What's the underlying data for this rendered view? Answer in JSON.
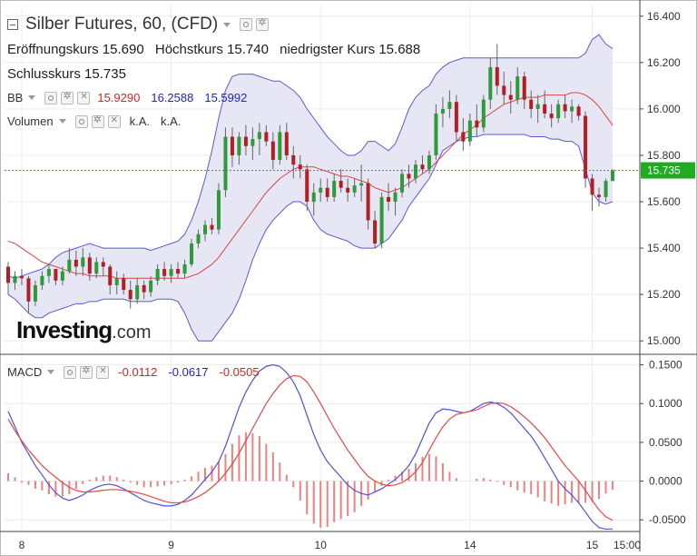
{
  "header": {
    "title": "Silber Futures, 60, (CFD)",
    "ohlc": [
      {
        "label": "Eröffnungskurs",
        "value": "15.690"
      },
      {
        "label": "Höchstkurs",
        "value": "15.740"
      },
      {
        "label": "niedrigster Kurs",
        "value": "15.688"
      },
      {
        "label": "Schlusskurs",
        "value": "15.735"
      }
    ]
  },
  "indicators": {
    "bb": {
      "label": "BB",
      "values": [
        "15.9290",
        "16.2588",
        "15.5992"
      ],
      "colors": [
        "#dd2222",
        "#2222cc",
        "#2222cc"
      ]
    },
    "volume": {
      "label": "Volumen",
      "values": [
        "k.A.",
        "k.A."
      ]
    },
    "macd": {
      "label": "MACD",
      "values": [
        "-0.0112",
        "-0.0617",
        "-0.0505"
      ],
      "colors": [
        "#dd2222",
        "#2222cc",
        "#dd2222"
      ]
    }
  },
  "logo": {
    "main": "Investing",
    "suffix": ".com"
  },
  "price_axis": {
    "ticks": [
      "16.400",
      "16.200",
      "16.000",
      "15.800",
      "15.600",
      "15.400",
      "15.200",
      "15.000"
    ],
    "current": "15.735"
  },
  "macd_axis": {
    "ticks": [
      "0.1500",
      "0.1000",
      "0.0500",
      "0.0000",
      "-0.0500"
    ]
  },
  "time_axis": {
    "ticks": [
      "8",
      "9",
      "10",
      "14",
      "15",
      "15:00"
    ]
  },
  "colors": {
    "up": "#2e9a3a",
    "down": "#b51d25",
    "band_fill": "#e3e3f3",
    "band_line": "#5a5ae0",
    "mid_line": "#dd4444",
    "macd_line": "#5050e0",
    "signal_line": "#ee4444",
    "hist": "#f08080",
    "current": "#22aa22"
  },
  "chart_data": [
    {
      "type": "candlestick",
      "title": "Silber Futures, 60, (CFD)",
      "ylim": [
        14.95,
        16.45
      ],
      "candles": [
        [
          15.32,
          15.34,
          15.2,
          15.25
        ],
        [
          15.25,
          15.3,
          15.22,
          15.28
        ],
        [
          15.28,
          15.31,
          15.24,
          15.27
        ],
        [
          15.27,
          15.28,
          15.12,
          15.17
        ],
        [
          15.17,
          15.26,
          15.15,
          15.24
        ],
        [
          15.24,
          15.3,
          15.22,
          15.28
        ],
        [
          15.28,
          15.33,
          15.25,
          15.31
        ],
        [
          15.31,
          15.31,
          15.24,
          15.26
        ],
        [
          15.26,
          15.32,
          15.24,
          15.3
        ],
        [
          15.3,
          15.4,
          15.29,
          15.35
        ],
        [
          15.35,
          15.39,
          15.28,
          15.32
        ],
        [
          15.32,
          15.4,
          15.28,
          15.36
        ],
        [
          15.36,
          15.38,
          15.26,
          15.29
        ],
        [
          15.29,
          15.36,
          15.27,
          15.34
        ],
        [
          15.34,
          15.36,
          15.28,
          15.32
        ],
        [
          15.32,
          15.33,
          15.2,
          15.24
        ],
        [
          15.24,
          15.3,
          15.2,
          15.27
        ],
        [
          15.27,
          15.29,
          15.2,
          15.22
        ],
        [
          15.22,
          15.26,
          15.14,
          15.18
        ],
        [
          15.18,
          15.27,
          15.16,
          15.24
        ],
        [
          15.24,
          15.26,
          15.18,
          15.21
        ],
        [
          15.21,
          15.28,
          15.19,
          15.26
        ],
        [
          15.26,
          15.33,
          15.24,
          15.31
        ],
        [
          15.31,
          15.34,
          15.26,
          15.28
        ],
        [
          15.28,
          15.33,
          15.25,
          15.31
        ],
        [
          15.31,
          15.34,
          15.27,
          15.29
        ],
        [
          15.29,
          15.35,
          15.27,
          15.33
        ],
        [
          15.33,
          15.44,
          15.32,
          15.42
        ],
        [
          15.42,
          15.48,
          15.4,
          15.46
        ],
        [
          15.46,
          15.52,
          15.43,
          15.5
        ],
        [
          15.5,
          15.53,
          15.46,
          15.48
        ],
        [
          15.48,
          15.68,
          15.46,
          15.65
        ],
        [
          15.65,
          15.92,
          15.62,
          15.88
        ],
        [
          15.88,
          15.92,
          15.75,
          15.8
        ],
        [
          15.8,
          15.9,
          15.76,
          15.88
        ],
        [
          15.88,
          15.93,
          15.8,
          15.84
        ],
        [
          15.84,
          15.92,
          15.78,
          15.87
        ],
        [
          15.87,
          15.94,
          15.8,
          15.9
        ],
        [
          15.9,
          15.93,
          15.84,
          15.86
        ],
        [
          15.86,
          15.9,
          15.74,
          15.78
        ],
        [
          15.78,
          15.93,
          15.76,
          15.9
        ],
        [
          15.9,
          15.94,
          15.78,
          15.8
        ],
        [
          15.8,
          15.84,
          15.7,
          15.76
        ],
        [
          15.76,
          15.8,
          15.7,
          15.74
        ],
        [
          15.74,
          15.76,
          15.56,
          15.6
        ],
        [
          15.6,
          15.68,
          15.54,
          15.64
        ],
        [
          15.64,
          15.7,
          15.6,
          15.66
        ],
        [
          15.66,
          15.7,
          15.6,
          15.62
        ],
        [
          15.62,
          15.72,
          15.6,
          15.69
        ],
        [
          15.69,
          15.74,
          15.64,
          15.66
        ],
        [
          15.66,
          15.7,
          15.6,
          15.64
        ],
        [
          15.64,
          15.7,
          15.62,
          15.67
        ],
        [
          15.67,
          15.76,
          15.6,
          15.68
        ],
        [
          15.68,
          15.7,
          15.48,
          15.52
        ],
        [
          15.52,
          15.56,
          15.4,
          15.42
        ],
        [
          15.42,
          15.64,
          15.4,
          15.62
        ],
        [
          15.62,
          15.68,
          15.56,
          15.6
        ],
        [
          15.6,
          15.66,
          15.54,
          15.64
        ],
        [
          15.64,
          15.74,
          15.62,
          15.72
        ],
        [
          15.72,
          15.76,
          15.66,
          15.7
        ],
        [
          15.7,
          15.78,
          15.68,
          15.76
        ],
        [
          15.76,
          15.8,
          15.72,
          15.74
        ],
        [
          15.74,
          15.82,
          15.72,
          15.8
        ],
        [
          15.8,
          16.02,
          15.78,
          15.98
        ],
        [
          15.98,
          16.05,
          15.92,
          16.0
        ],
        [
          16.0,
          16.08,
          15.96,
          16.03
        ],
        [
          16.03,
          16.06,
          15.86,
          15.9
        ],
        [
          15.9,
          15.96,
          15.82,
          15.86
        ],
        [
          15.86,
          15.98,
          15.84,
          15.95
        ],
        [
          15.95,
          16.02,
          15.88,
          15.92
        ],
        [
          15.92,
          16.06,
          15.9,
          16.04
        ],
        [
          16.04,
          16.22,
          16.0,
          16.18
        ],
        [
          16.18,
          16.28,
          16.06,
          16.1
        ],
        [
          16.1,
          16.16,
          16.02,
          16.06
        ],
        [
          16.06,
          16.12,
          15.98,
          16.04
        ],
        [
          16.04,
          16.18,
          16.02,
          16.14
        ],
        [
          16.14,
          16.16,
          16.0,
          16.04
        ],
        [
          16.04,
          16.08,
          15.96,
          16.0
        ],
        [
          16.0,
          16.06,
          15.94,
          16.02
        ],
        [
          16.02,
          16.08,
          15.96,
          15.98
        ],
        [
          15.98,
          16.02,
          15.92,
          15.96
        ],
        [
          15.96,
          16.04,
          15.94,
          16.02
        ],
        [
          16.02,
          16.06,
          15.96,
          15.99
        ],
        [
          15.99,
          16.04,
          15.94,
          16.01
        ],
        [
          16.01,
          16.02,
          15.95,
          15.97
        ],
        [
          15.97,
          15.99,
          15.66,
          15.7
        ],
        [
          15.7,
          15.72,
          15.56,
          15.63
        ],
        [
          15.63,
          15.66,
          15.58,
          15.62
        ],
        [
          15.62,
          15.7,
          15.6,
          15.69
        ],
        [
          15.69,
          15.74,
          15.688,
          15.735
        ]
      ],
      "bb_upper": [
        15.28,
        15.27,
        15.28,
        15.29,
        15.3,
        15.31,
        15.33,
        15.36,
        15.38,
        15.39,
        15.4,
        15.41,
        15.42,
        15.41,
        15.4,
        15.4,
        15.4,
        15.4,
        15.4,
        15.4,
        15.4,
        15.39,
        15.4,
        15.41,
        15.42,
        15.43,
        15.46,
        15.52,
        15.6,
        15.7,
        15.82,
        15.96,
        16.08,
        16.14,
        16.15,
        16.15,
        16.15,
        16.14,
        16.13,
        16.12,
        16.12,
        16.1,
        16.08,
        16.05,
        16.0,
        15.96,
        15.92,
        15.88,
        15.85,
        15.82,
        15.8,
        15.8,
        15.82,
        15.86,
        15.86,
        15.84,
        15.82,
        15.85,
        15.92,
        16.0,
        16.05,
        16.08,
        16.1,
        16.15,
        16.18,
        16.2,
        16.21,
        16.22,
        16.22,
        16.22,
        16.22,
        16.22,
        16.22,
        16.22,
        16.22,
        16.22,
        16.22,
        16.22,
        16.22,
        16.22,
        16.22,
        16.22,
        16.22,
        16.22,
        16.22,
        16.24,
        16.3,
        16.32,
        16.28,
        16.26
      ],
      "bb_middle": [
        15.43,
        15.42,
        15.4,
        15.38,
        15.36,
        15.34,
        15.33,
        15.32,
        15.31,
        15.3,
        15.29,
        15.29,
        15.28,
        15.28,
        15.28,
        15.28,
        15.27,
        15.27,
        15.27,
        15.27,
        15.27,
        15.27,
        15.27,
        15.27,
        15.27,
        15.27,
        15.27,
        15.28,
        15.29,
        15.31,
        15.33,
        15.36,
        15.4,
        15.44,
        15.48,
        15.52,
        15.56,
        15.6,
        15.64,
        15.67,
        15.7,
        15.72,
        15.74,
        15.75,
        15.75,
        15.75,
        15.74,
        15.73,
        15.72,
        15.71,
        15.71,
        15.7,
        15.69,
        15.68,
        15.66,
        15.65,
        15.64,
        15.65,
        15.66,
        15.68,
        15.7,
        15.72,
        15.74,
        15.77,
        15.8,
        15.83,
        15.86,
        15.89,
        15.91,
        15.93,
        15.96,
        15.98,
        16.0,
        16.02,
        16.03,
        16.04,
        16.05,
        16.05,
        16.05,
        16.06,
        16.06,
        16.06,
        16.06,
        16.07,
        16.07,
        16.06,
        16.04,
        16.01,
        15.97,
        15.93
      ],
      "bb_lower": [
        15.2,
        15.18,
        15.15,
        15.12,
        15.1,
        15.1,
        15.12,
        15.13,
        15.14,
        15.15,
        15.16,
        15.16,
        15.17,
        15.17,
        15.18,
        15.18,
        15.18,
        15.18,
        15.17,
        15.17,
        15.17,
        15.17,
        15.18,
        15.18,
        15.18,
        15.17,
        15.12,
        15.05,
        15.0,
        15.0,
        15.0,
        15.04,
        15.08,
        15.12,
        15.18,
        15.26,
        15.35,
        15.42,
        15.48,
        15.52,
        15.55,
        15.58,
        15.6,
        15.6,
        15.58,
        15.52,
        15.48,
        15.46,
        15.45,
        15.44,
        15.43,
        15.41,
        15.4,
        15.4,
        15.4,
        15.42,
        15.44,
        15.48,
        15.52,
        15.58,
        15.62,
        15.66,
        15.7,
        15.76,
        15.82,
        15.84,
        15.86,
        15.87,
        15.88,
        15.88,
        15.89,
        15.89,
        15.89,
        15.89,
        15.89,
        15.89,
        15.89,
        15.88,
        15.88,
        15.88,
        15.87,
        15.87,
        15.86,
        15.86,
        15.84,
        15.74,
        15.64,
        15.6,
        15.59,
        15.6
      ]
    },
    {
      "type": "line",
      "title": "MACD",
      "ylim": [
        -0.065,
        0.16
      ],
      "macd": [
        0.09,
        0.07,
        0.05,
        0.035,
        0.02,
        0.008,
        -0.005,
        -0.015,
        -0.022,
        -0.025,
        -0.022,
        -0.018,
        -0.012,
        -0.008,
        -0.005,
        -0.004,
        -0.006,
        -0.01,
        -0.015,
        -0.02,
        -0.025,
        -0.028,
        -0.03,
        -0.032,
        -0.032,
        -0.03,
        -0.025,
        -0.018,
        -0.008,
        0.002,
        0.012,
        0.025,
        0.045,
        0.07,
        0.095,
        0.115,
        0.13,
        0.142,
        0.148,
        0.15,
        0.148,
        0.14,
        0.128,
        0.11,
        0.085,
        0.06,
        0.04,
        0.025,
        0.015,
        0.005,
        -0.005,
        -0.012,
        -0.016,
        -0.018,
        -0.014,
        -0.01,
        -0.004,
        0.002,
        0.01,
        0.02,
        0.035,
        0.055,
        0.075,
        0.088,
        0.093,
        0.092,
        0.09,
        0.088,
        0.09,
        0.095,
        0.1,
        0.102,
        0.1,
        0.095,
        0.088,
        0.078,
        0.068,
        0.058,
        0.045,
        0.03,
        0.015,
        0.0,
        -0.01,
        -0.018,
        -0.028,
        -0.04,
        -0.052,
        -0.06,
        -0.062,
        -0.0617
      ],
      "signal": [
        0.08,
        0.065,
        0.052,
        0.04,
        0.03,
        0.02,
        0.012,
        0.005,
        -0.002,
        -0.008,
        -0.012,
        -0.014,
        -0.014,
        -0.013,
        -0.012,
        -0.011,
        -0.011,
        -0.012,
        -0.013,
        -0.015,
        -0.017,
        -0.02,
        -0.023,
        -0.026,
        -0.028,
        -0.028,
        -0.027,
        -0.024,
        -0.02,
        -0.015,
        -0.008,
        0.0,
        0.01,
        0.022,
        0.036,
        0.052,
        0.068,
        0.084,
        0.1,
        0.113,
        0.124,
        0.132,
        0.136,
        0.135,
        0.128,
        0.115,
        0.1,
        0.084,
        0.068,
        0.054,
        0.04,
        0.028,
        0.016,
        0.006,
        0.0,
        -0.004,
        -0.006,
        -0.005,
        -0.002,
        0.004,
        0.012,
        0.024,
        0.04,
        0.056,
        0.07,
        0.08,
        0.086,
        0.088,
        0.09,
        0.092,
        0.096,
        0.1,
        0.101,
        0.1,
        0.096,
        0.09,
        0.083,
        0.075,
        0.066,
        0.056,
        0.044,
        0.032,
        0.02,
        0.01,
        0.0,
        -0.012,
        -0.025,
        -0.037,
        -0.046,
        -0.0505
      ]
    }
  ]
}
